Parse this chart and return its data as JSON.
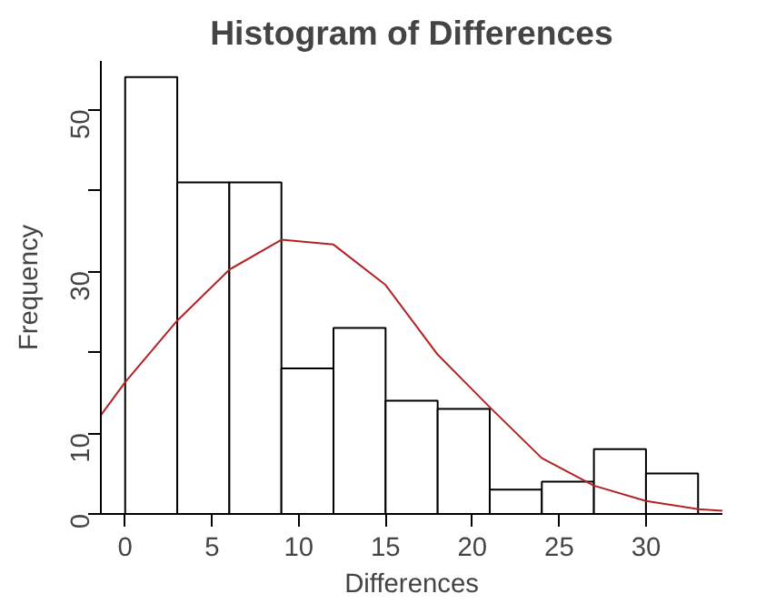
{
  "chart_data": {
    "type": "histogram",
    "title": "Histogram of Differences",
    "xlabel": "Differences",
    "ylabel": "Frequency",
    "bins": [
      0,
      3,
      6,
      9,
      12,
      15,
      18,
      21,
      24,
      27,
      30,
      33
    ],
    "values": [
      54,
      41,
      41,
      18,
      23,
      14,
      13,
      3,
      4,
      8,
      5
    ],
    "color": "#ffffff",
    "series": [
      {
        "type": "line",
        "color": "#b22222",
        "x": [
          -1.4,
          0,
          3,
          6,
          9,
          12,
          15,
          18,
          21,
          24,
          27,
          30,
          33,
          34.4
        ],
        "values": [
          12.2,
          16.3,
          23.9,
          30.2,
          33.9,
          33.3,
          28.3,
          19.7,
          13.2,
          6.9,
          3.5,
          1.6,
          0.6,
          0.4
        ]
      }
    ],
    "xlim": [
      -1.4,
      34.4
    ],
    "ylim": [
      0,
      56
    ],
    "xticks": [
      0,
      5,
      10,
      15,
      20,
      25,
      30
    ],
    "yticks": [
      0,
      10,
      {
        "value": 20,
        "label": null
      },
      30,
      {
        "value": 40,
        "label": null
      },
      50
    ],
    "grid": false
  }
}
